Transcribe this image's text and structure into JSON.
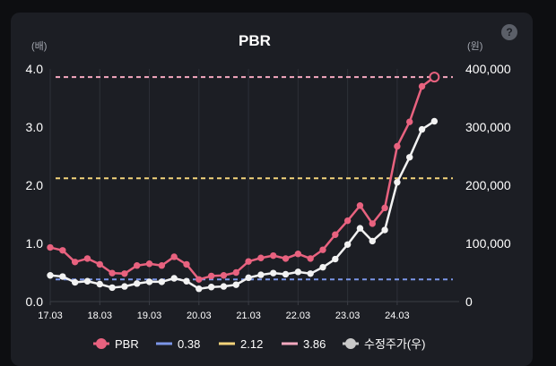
{
  "chart_data": {
    "type": "line",
    "title": "PBR",
    "help_label": "?",
    "left_axis": {
      "unit": "(배)",
      "ticks": [
        "4.0",
        "3.0",
        "2.0",
        "1.0",
        "0.0"
      ],
      "ylim": [
        0,
        4
      ]
    },
    "right_axis": {
      "unit": "(원)",
      "ticks": [
        "400,000",
        "300,000",
        "200,000",
        "100,000",
        "0"
      ],
      "ylim": [
        0,
        400000
      ]
    },
    "x_tick_labels": [
      "17.03",
      "18.03",
      "19.03",
      "20.03",
      "21.03",
      "22.03",
      "23.03",
      "24.03"
    ],
    "legend_position": "bottom",
    "series": [
      {
        "name": "PBR",
        "axis": "left",
        "color": "#e8627f",
        "x": [
          2017.0,
          2017.25,
          2017.5,
          2017.75,
          2018.0,
          2018.25,
          2018.5,
          2018.75,
          2019.0,
          2019.25,
          2019.5,
          2019.75,
          2020.0,
          2020.25,
          2020.5,
          2020.75,
          2021.0,
          2021.25,
          2021.5,
          2021.75,
          2022.0,
          2022.25,
          2022.5,
          2022.75,
          2023.0,
          2023.25,
          2023.5,
          2023.75,
          2024.0,
          2024.25,
          2024.5,
          2024.75,
          2025.0,
          2025.25
        ],
        "values": [
          0.93,
          0.88,
          0.68,
          0.74,
          0.64,
          0.49,
          0.48,
          0.62,
          0.65,
          0.62,
          0.77,
          0.64,
          0.38,
          0.44,
          0.45,
          0.5,
          0.69,
          0.75,
          0.79,
          0.74,
          0.82,
          0.74,
          0.89,
          1.15,
          1.39,
          1.65,
          1.34,
          1.61,
          2.67,
          3.09,
          3.7,
          3.86,
          null,
          null
        ]
      },
      {
        "name": "수정주가(우)",
        "axis": "right",
        "color": "#f2f2f2",
        "x": [
          2017.0,
          2017.25,
          2017.5,
          2017.75,
          2018.0,
          2018.25,
          2018.5,
          2018.75,
          2019.0,
          2019.25,
          2019.5,
          2019.75,
          2020.0,
          2020.25,
          2020.5,
          2020.75,
          2021.0,
          2021.25,
          2021.5,
          2021.75,
          2022.0,
          2022.25,
          2022.5,
          2022.75,
          2023.0,
          2023.25,
          2023.5,
          2023.75,
          2024.0,
          2024.25,
          2024.5,
          2024.75,
          2025.0,
          2025.25
        ],
        "values": [
          45000,
          43000,
          33000,
          35000,
          30000,
          24000,
          26000,
          31000,
          34000,
          34000,
          40000,
          35000,
          22000,
          25000,
          26000,
          29000,
          41000,
          46000,
          49000,
          47000,
          51000,
          48000,
          59000,
          73000,
          98000,
          126000,
          104000,
          123000,
          205000,
          248000,
          296000,
          310000,
          null,
          null
        ]
      }
    ],
    "reference_lines": [
      {
        "name": "0.38",
        "value": 0.38,
        "color": "#7b96e8"
      },
      {
        "name": "2.12",
        "value": 2.12,
        "color": "#f3d37a"
      },
      {
        "name": "3.86",
        "value": 3.86,
        "color": "#f6a9c0"
      }
    ]
  }
}
